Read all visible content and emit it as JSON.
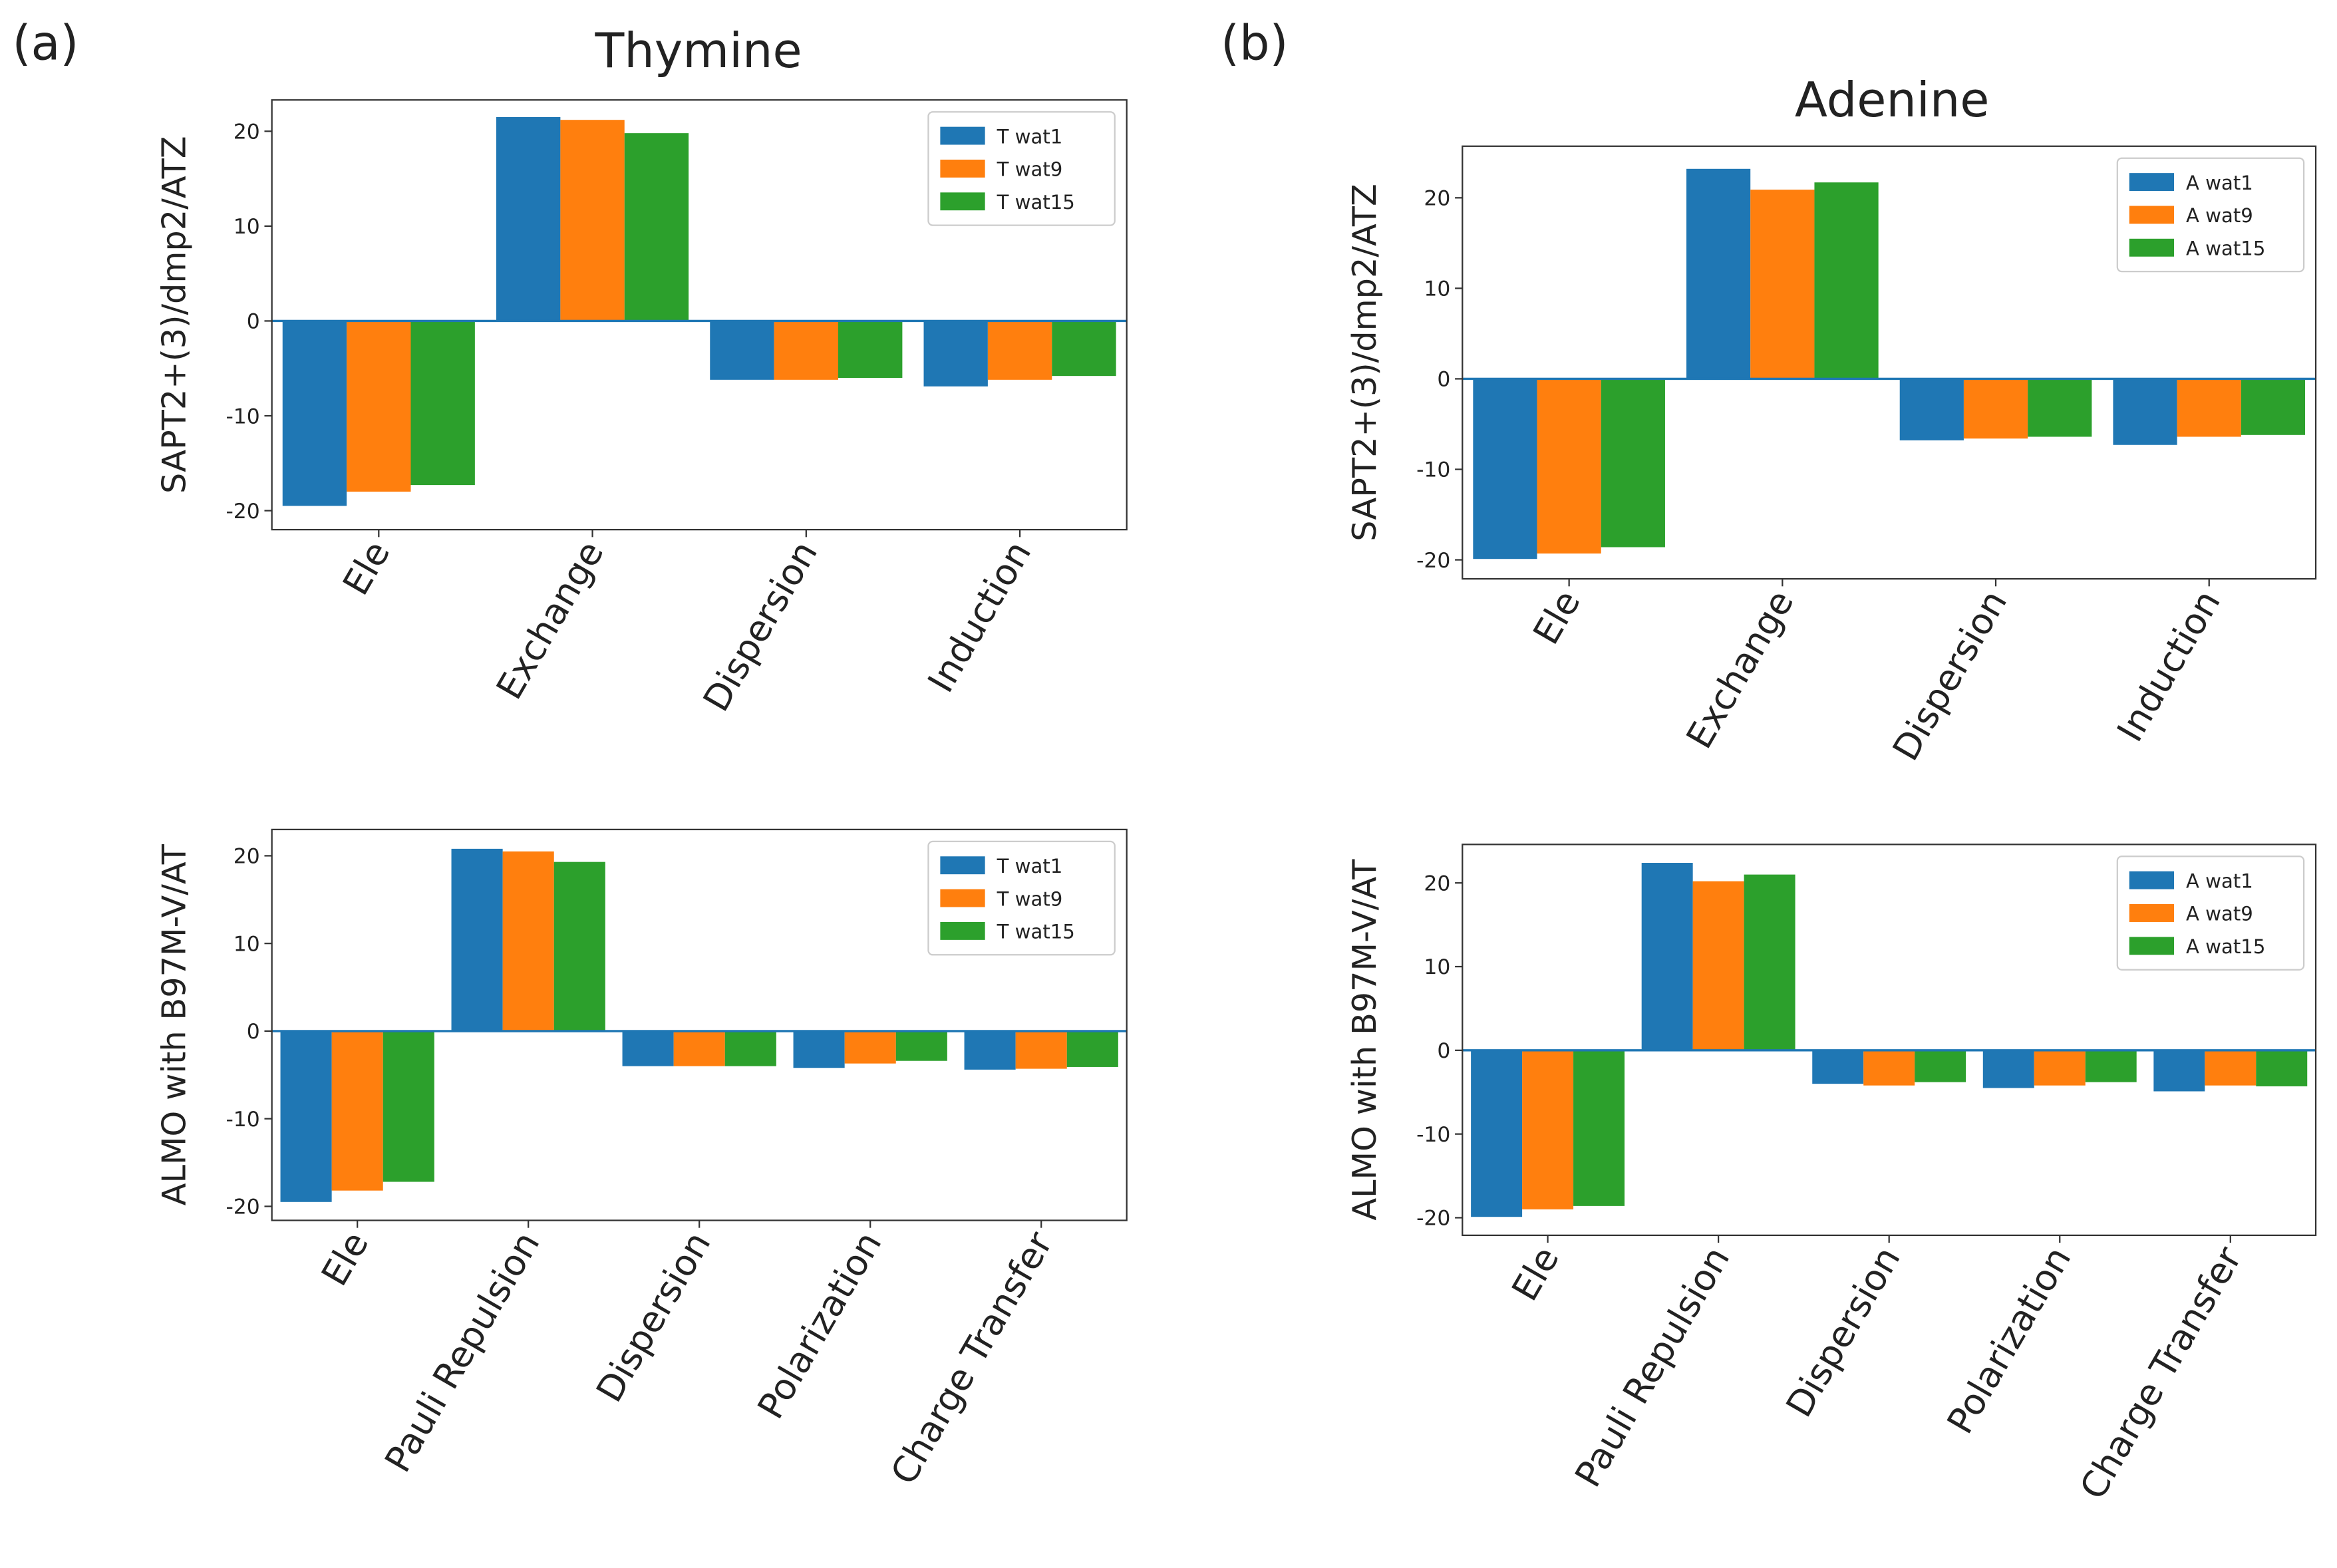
{
  "chart_data": [
    {
      "type": "bar",
      "panel_label": "(a)",
      "title": "Thymine",
      "ylabel": "SAPT2+(3)/dmp2/ATZ",
      "categories": [
        "Ele",
        "Exchange",
        "Dispersion",
        "Induction"
      ],
      "series": [
        {
          "name": "T wat1",
          "color": "#1f77b4",
          "values": [
            -19.5,
            21.5,
            -6.2,
            -6.9
          ]
        },
        {
          "name": "T wat9",
          "color": "#ff7f0e",
          "values": [
            -18.0,
            21.2,
            -6.2,
            -6.2
          ]
        },
        {
          "name": "T wat15",
          "color": "#2ca02c",
          "values": [
            -17.3,
            19.8,
            -6.0,
            -5.8
          ]
        }
      ],
      "ylim": [
        -22.0,
        23.3
      ],
      "yticks": [
        -20,
        -10,
        0,
        10,
        20
      ],
      "legend": "upper right",
      "zero_line": 0
    },
    {
      "type": "bar",
      "ylabel": "ALMO with B97M-V/AT",
      "categories": [
        "Ele",
        "Pauli Repulsion",
        "Dispersion",
        "Polarization",
        "Charge Transfer"
      ],
      "series": [
        {
          "name": "T wat1",
          "color": "#1f77b4",
          "values": [
            -19.5,
            20.8,
            -4.0,
            -4.2,
            -4.4
          ]
        },
        {
          "name": "T wat9",
          "color": "#ff7f0e",
          "values": [
            -18.2,
            20.5,
            -4.0,
            -3.7,
            -4.3
          ]
        },
        {
          "name": "T wat15",
          "color": "#2ca02c",
          "values": [
            -17.2,
            19.3,
            -4.0,
            -3.4,
            -4.1
          ]
        }
      ],
      "ylim": [
        -21.6,
        23.0
      ],
      "yticks": [
        -20,
        -10,
        0,
        10,
        20
      ],
      "legend": "upper right",
      "zero_line": 0
    },
    {
      "type": "bar",
      "panel_label": "(b)",
      "title": "Adenine",
      "ylabel": "SAPT2+(3)/dmp2/ATZ",
      "categories": [
        "Ele",
        "Exchange",
        "Dispersion",
        "Induction"
      ],
      "series": [
        {
          "name": "A wat1",
          "color": "#1f77b4",
          "values": [
            -19.9,
            23.2,
            -6.8,
            -7.3
          ]
        },
        {
          "name": "A wat9",
          "color": "#ff7f0e",
          "values": [
            -19.3,
            20.9,
            -6.6,
            -6.4
          ]
        },
        {
          "name": "A wat15",
          "color": "#2ca02c",
          "values": [
            -18.6,
            21.7,
            -6.4,
            -6.2
          ]
        }
      ],
      "ylim": [
        -22.1,
        25.7
      ],
      "yticks": [
        -20,
        -10,
        0,
        10,
        20
      ],
      "legend": "upper right",
      "zero_line": 0
    },
    {
      "type": "bar",
      "ylabel": "ALMO with B97M-V/AT",
      "categories": [
        "Ele",
        "Pauli Repulsion",
        "Dispersion",
        "Polarization",
        "Charge Transfer"
      ],
      "series": [
        {
          "name": "A wat1",
          "color": "#1f77b4",
          "values": [
            -19.9,
            22.4,
            -4.0,
            -4.5,
            -4.9
          ]
        },
        {
          "name": "A wat9",
          "color": "#ff7f0e",
          "values": [
            -19.0,
            20.2,
            -4.2,
            -4.2,
            -4.2
          ]
        },
        {
          "name": "A wat15",
          "color": "#2ca02c",
          "values": [
            -18.6,
            21.0,
            -3.8,
            -3.8,
            -4.3
          ]
        }
      ],
      "ylim": [
        -22.1,
        24.6
      ],
      "yticks": [
        -20,
        -10,
        0,
        10,
        20
      ],
      "legend": "upper right",
      "zero_line": 0
    }
  ]
}
